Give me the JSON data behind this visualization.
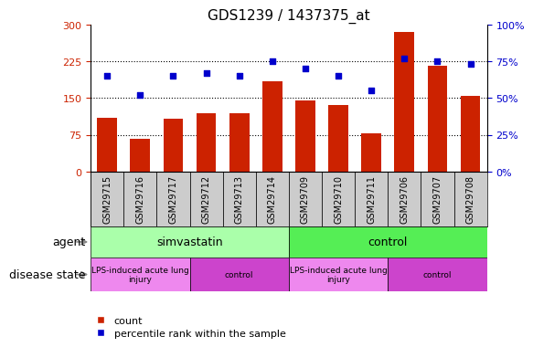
{
  "title": "GDS1239 / 1437375_at",
  "samples": [
    "GSM29715",
    "GSM29716",
    "GSM29717",
    "GSM29712",
    "GSM29713",
    "GSM29714",
    "GSM29709",
    "GSM29710",
    "GSM29711",
    "GSM29706",
    "GSM29707",
    "GSM29708"
  ],
  "bar_values": [
    110,
    68,
    108,
    120,
    120,
    185,
    145,
    135,
    78,
    285,
    215,
    155
  ],
  "blue_values_pct": [
    65,
    52,
    65,
    67,
    65,
    75,
    70,
    65,
    55,
    77,
    75,
    73
  ],
  "bar_color": "#cc2200",
  "blue_color": "#0000cc",
  "ylim_left": [
    0,
    300
  ],
  "ylim_right": [
    0,
    100
  ],
  "yticks_left": [
    0,
    75,
    150,
    225,
    300
  ],
  "ytick_labels_left": [
    "0",
    "75",
    "150",
    "225",
    "300"
  ],
  "yticks_right": [
    0,
    25,
    50,
    75,
    100
  ],
  "ytick_labels_right": [
    "0%",
    "25%",
    "50%",
    "75%",
    "100%"
  ],
  "agent_groups": [
    {
      "label": "simvastatin",
      "start": 0,
      "end": 6,
      "color": "#aaffaa"
    },
    {
      "label": "control",
      "start": 6,
      "end": 12,
      "color": "#55ee55"
    }
  ],
  "disease_groups": [
    {
      "label": "LPS-induced acute lung\ninjury",
      "start": 0,
      "end": 3,
      "color": "#ee88ee"
    },
    {
      "label": "control",
      "start": 3,
      "end": 6,
      "color": "#cc44cc"
    },
    {
      "label": "LPS-induced acute lung\ninjury",
      "start": 6,
      "end": 9,
      "color": "#ee88ee"
    },
    {
      "label": "control",
      "start": 9,
      "end": 12,
      "color": "#cc44cc"
    }
  ],
  "xlabel_agent": "agent",
  "xlabel_disease": "disease state",
  "legend_bar_label": "count",
  "legend_blue_label": "percentile rank within the sample",
  "title_fontsize": 11,
  "tick_fontsize": 8,
  "bar_width": 0.6,
  "sample_box_color": "#cccccc",
  "arrow_color": "#888888"
}
